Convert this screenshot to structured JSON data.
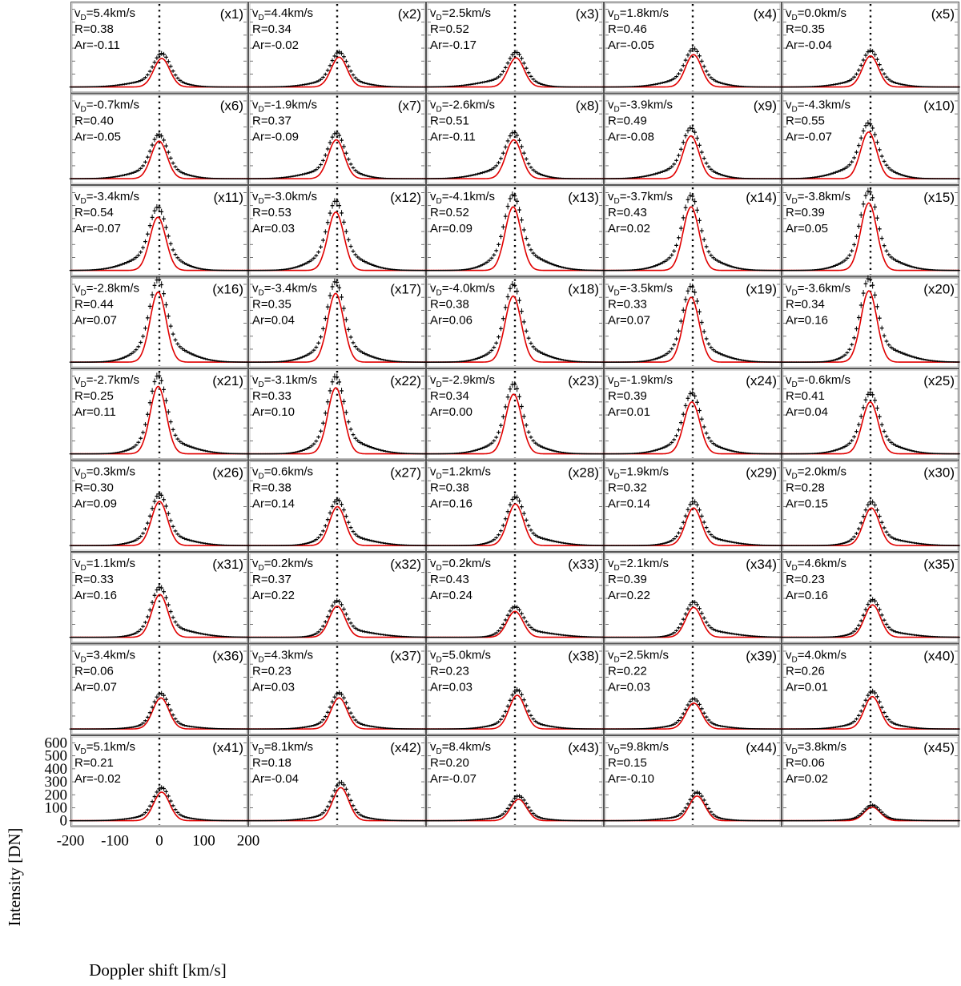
{
  "chart_data": {
    "type": "line",
    "layout": "grid of 45 spectral-line profile panels, 9 rows by 5 columns",
    "xlabel": "Doppler shift [km/s]",
    "ylabel": "Intensity [DN]",
    "xlim": [
      -200,
      200
    ],
    "ylim": [
      -30,
      640
    ],
    "x_ticks": [
      -200,
      -100,
      0,
      100,
      200
    ],
    "y_ticks": [
      0,
      100,
      200,
      300,
      400,
      500,
      600
    ],
    "reference_line": {
      "x": 0,
      "style": "dotted"
    },
    "series": [
      {
        "kind": "observed profile with error bars",
        "color": "#000000"
      },
      {
        "kind": "single Gaussian fit",
        "color": "#e00000"
      }
    ],
    "panels": [
      {
        "label": "(x1)",
        "vd": "5.4",
        "R": "0.38",
        "Ar": "-0.11",
        "peak": 220
      },
      {
        "label": "(x2)",
        "vd": "4.4",
        "R": "0.34",
        "Ar": "-0.02",
        "peak": 230
      },
      {
        "label": "(x3)",
        "vd": "2.5",
        "R": "0.52",
        "Ar": "-0.17",
        "peak": 225
      },
      {
        "label": "(x4)",
        "vd": "1.8",
        "R": "0.46",
        "Ar": "-0.05",
        "peak": 250
      },
      {
        "label": "(x5)",
        "vd": "0.0",
        "R": "0.35",
        "Ar": "-0.04",
        "peak": 240
      },
      {
        "label": "(x6)",
        "vd": "-0.7",
        "R": "0.40",
        "Ar": "-0.05",
        "peak": 290
      },
      {
        "label": "(x7)",
        "vd": "-1.9",
        "R": "0.37",
        "Ar": "-0.09",
        "peak": 300
      },
      {
        "label": "(x8)",
        "vd": "-2.6",
        "R": "0.51",
        "Ar": "-0.11",
        "peak": 300
      },
      {
        "label": "(x9)",
        "vd": "-3.9",
        "R": "0.49",
        "Ar": "-0.08",
        "peak": 330
      },
      {
        "label": "(x10)",
        "vd": "-4.3",
        "R": "0.55",
        "Ar": "-0.07",
        "peak": 360
      },
      {
        "label": "(x11)",
        "vd": "-3.4",
        "R": "0.54",
        "Ar": "-0.07",
        "peak": 410
      },
      {
        "label": "(x12)",
        "vd": "-3.0",
        "R": "0.53",
        "Ar": "0.03",
        "peak": 450
      },
      {
        "label": "(x13)",
        "vd": "-4.1",
        "R": "0.52",
        "Ar": "0.09",
        "peak": 490
      },
      {
        "label": "(x14)",
        "vd": "-3.7",
        "R": "0.43",
        "Ar": "0.02",
        "peak": 490
      },
      {
        "label": "(x15)",
        "vd": "-3.8",
        "R": "0.39",
        "Ar": "0.05",
        "peak": 520
      },
      {
        "label": "(x16)",
        "vd": "-2.8",
        "R": "0.44",
        "Ar": "0.07",
        "peak": 540
      },
      {
        "label": "(x17)",
        "vd": "-3.4",
        "R": "0.35",
        "Ar": "0.04",
        "peak": 530
      },
      {
        "label": "(x18)",
        "vd": "-4.0",
        "R": "0.38",
        "Ar": "0.06",
        "peak": 510
      },
      {
        "label": "(x19)",
        "vd": "-3.5",
        "R": "0.33",
        "Ar": "0.07",
        "peak": 500
      },
      {
        "label": "(x20)",
        "vd": "-3.6",
        "R": "0.34",
        "Ar": "0.16",
        "peak": 550
      },
      {
        "label": "(x21)",
        "vd": "-2.7",
        "R": "0.25",
        "Ar": "0.11",
        "peak": 520
      },
      {
        "label": "(x22)",
        "vd": "-3.1",
        "R": "0.33",
        "Ar": "0.10",
        "peak": 510
      },
      {
        "label": "(x23)",
        "vd": "-2.9",
        "R": "0.34",
        "Ar": "0.00",
        "peak": 460
      },
      {
        "label": "(x24)",
        "vd": "-1.9",
        "R": "0.39",
        "Ar": "0.01",
        "peak": 400
      },
      {
        "label": "(x25)",
        "vd": "-0.6",
        "R": "0.41",
        "Ar": "0.04",
        "peak": 400
      },
      {
        "label": "(x26)",
        "vd": "0.3",
        "R": "0.30",
        "Ar": "0.09",
        "peak": 340
      },
      {
        "label": "(x27)",
        "vd": "0.6",
        "R": "0.38",
        "Ar": "0.14",
        "peak": 300
      },
      {
        "label": "(x28)",
        "vd": "1.2",
        "R": "0.38",
        "Ar": "0.16",
        "peak": 320
      },
      {
        "label": "(x29)",
        "vd": "1.9",
        "R": "0.32",
        "Ar": "0.14",
        "peak": 290
      },
      {
        "label": "(x30)",
        "vd": "2.0",
        "R": "0.28",
        "Ar": "0.15",
        "peak": 290
      },
      {
        "label": "(x31)",
        "vd": "1.1",
        "R": "0.33",
        "Ar": "0.16",
        "peak": 330
      },
      {
        "label": "(x32)",
        "vd": "0.2",
        "R": "0.37",
        "Ar": "0.22",
        "peak": 240
      },
      {
        "label": "(x33)",
        "vd": "0.2",
        "R": "0.43",
        "Ar": "0.24",
        "peak": 200
      },
      {
        "label": "(x34)",
        "vd": "2.1",
        "R": "0.39",
        "Ar": "0.22",
        "peak": 230
      },
      {
        "label": "(x35)",
        "vd": "4.6",
        "R": "0.23",
        "Ar": "0.16",
        "peak": 250
      },
      {
        "label": "(x36)",
        "vd": "3.4",
        "R": "0.06",
        "Ar": "0.07",
        "peak": 240
      },
      {
        "label": "(x37)",
        "vd": "4.3",
        "R": "0.23",
        "Ar": "0.03",
        "peak": 240
      },
      {
        "label": "(x38)",
        "vd": "5.0",
        "R": "0.23",
        "Ar": "0.03",
        "peak": 260
      },
      {
        "label": "(x39)",
        "vd": "2.5",
        "R": "0.22",
        "Ar": "0.03",
        "peak": 200
      },
      {
        "label": "(x40)",
        "vd": "4.0",
        "R": "0.26",
        "Ar": "0.01",
        "peak": 250
      },
      {
        "label": "(x41)",
        "vd": "5.1",
        "R": "0.21",
        "Ar": "-0.02",
        "peak": 220
      },
      {
        "label": "(x42)",
        "vd": "8.1",
        "R": "0.18",
        "Ar": "-0.04",
        "peak": 255
      },
      {
        "label": "(x43)",
        "vd": "8.4",
        "R": "0.20",
        "Ar": "-0.07",
        "peak": 165
      },
      {
        "label": "(x44)",
        "vd": "9.8",
        "R": "0.15",
        "Ar": "-0.10",
        "peak": 190
      },
      {
        "label": "(x45)",
        "vd": "3.8",
        "R": "0.06",
        "Ar": "0.02",
        "peak": 105
      }
    ]
  }
}
